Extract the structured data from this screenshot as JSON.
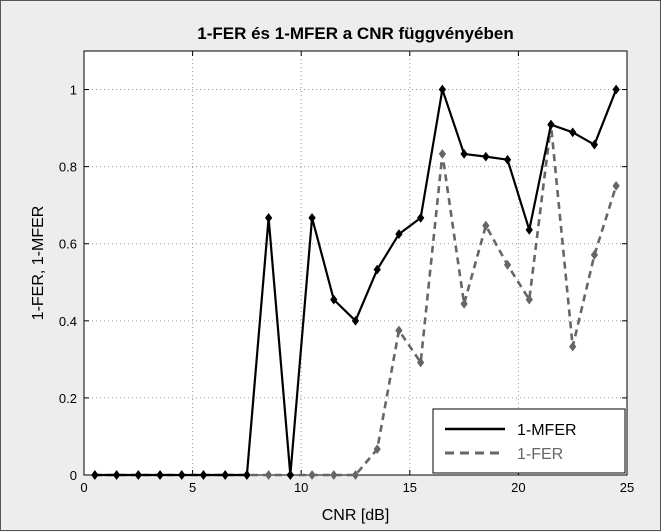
{
  "chart_data": {
    "type": "line",
    "title": "1-FER és 1-MFER a CNR függvényében",
    "xlabel": "CNR [dB]",
    "ylabel": "1-FER, 1-MFER",
    "xlim": [
      0,
      25
    ],
    "ylim": [
      0,
      1.1
    ],
    "xticks": [
      "0",
      "5",
      "10",
      "15",
      "20",
      "25"
    ],
    "yticks": [
      "0",
      "0.2",
      "0.4",
      "0.6",
      "0.8",
      "1"
    ],
    "grid": true,
    "legend_position": "bottom-right",
    "x": [
      0.5,
      1.5,
      2.5,
      3.5,
      4.5,
      5.5,
      6.5,
      7.5,
      8.5,
      9.5,
      10.5,
      11.5,
      12.5,
      13.5,
      14.5,
      15.5,
      16.5,
      17.5,
      18.5,
      19.5,
      20.5,
      21.5,
      22.5,
      23.5,
      24.5
    ],
    "series": [
      {
        "name": "1-MFER",
        "color": "#000000",
        "style": "solid",
        "values": [
          0,
          0,
          0,
          0,
          0,
          0,
          0,
          0,
          0.667,
          0,
          0.667,
          0.455,
          0.4,
          0.533,
          0.625,
          0.667,
          1.0,
          0.833,
          0.826,
          0.818,
          0.636,
          0.909,
          0.889,
          0.857,
          1.0
        ]
      },
      {
        "name": "1-FER",
        "color": "#666666",
        "style": "dashed",
        "values": [
          0,
          0,
          0,
          0,
          0,
          0,
          0,
          0,
          0,
          0,
          0,
          0,
          0,
          0.067,
          0.375,
          0.292,
          0.833,
          0.444,
          0.647,
          0.545,
          0.455,
          0.909,
          0.333,
          0.571,
          0.75
        ]
      }
    ]
  }
}
